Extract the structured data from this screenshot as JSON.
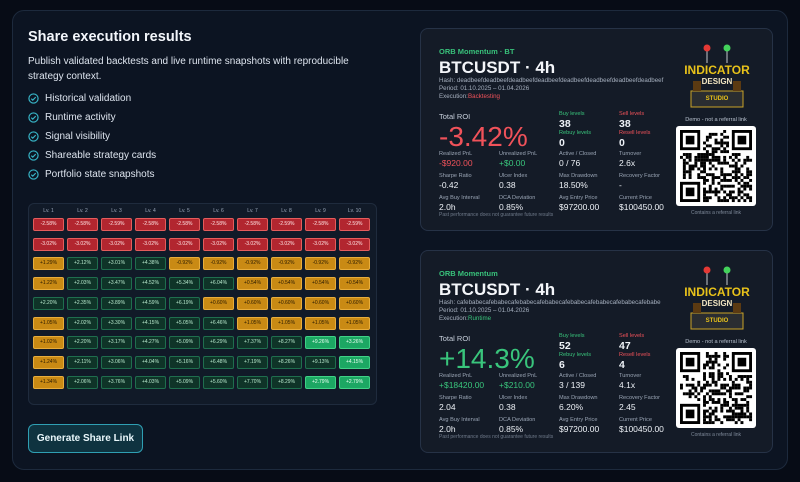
{
  "header": {
    "title": "Share execution results",
    "description": "Publish validated backtests and live runtime snapshots with reproducible strategy context."
  },
  "features": [
    "Historical validation",
    "Runtime activity",
    "Signal visibility",
    "Shareable strategy cards",
    "Portfolio state snapshots"
  ],
  "heatmap": {
    "columns": [
      "Lv. 1",
      "Lv. 2",
      "Lv. 3",
      "Lv. 4",
      "Lv. 5",
      "Lv. 6",
      "Lv. 7",
      "Lv. 8",
      "Lv. 9",
      "Lv. 10"
    ],
    "rows": [
      [
        "-2.58%",
        "-2.58%",
        "-2.59%",
        "-2.58%",
        "-2.58%",
        "-2.58%",
        "-2.58%",
        "-2.59%",
        "-2.58%",
        "-2.59%"
      ],
      [
        "-3.02%",
        "-3.02%",
        "-3.02%",
        "-3.02%",
        "-3.02%",
        "-3.02%",
        "-3.02%",
        "-3.02%",
        "-3.02%",
        "-3.02%"
      ],
      [
        "+1.29%",
        "+2.12%",
        "+3.01%",
        "+4.38%",
        "-0.92%",
        "-0.92%",
        "-0.92%",
        "-0.92%",
        "-0.92%",
        "-0.92%"
      ],
      [
        "+1.22%",
        "+2.03%",
        "+3.47%",
        "+4.52%",
        "+5.34%",
        "+6.04%",
        "+0.54%",
        "+0.54%",
        "+0.54%",
        "+0.54%"
      ],
      [
        "+2.20%",
        "+2.35%",
        "+3.89%",
        "+4.59%",
        "+6.19%",
        "+0.60%",
        "+0.60%",
        "+0.60%",
        "+0.60%",
        "+0.60%"
      ],
      [
        "+1.05%",
        "+2.02%",
        "+3.30%",
        "+4.15%",
        "+5.05%",
        "+6.46%",
        "+1.05%",
        "+1.05%",
        "+1.05%",
        "+1.05%"
      ],
      [
        "+1.02%",
        "+2.20%",
        "+3.17%",
        "+4.27%",
        "+5.09%",
        "+6.29%",
        "+7.37%",
        "+8.27%",
        "+9.26%",
        "+3.26%"
      ],
      [
        "+1.24%",
        "+2.11%",
        "+3.06%",
        "+4.04%",
        "+5.16%",
        "+6.48%",
        "+7.19%",
        "+8.26%",
        "+9.13%",
        "+4.15%"
      ],
      [
        "+1.34%",
        "+2.06%",
        "+3.76%",
        "+4.03%",
        "+5.09%",
        "+5.60%",
        "+7.70%",
        "+8.29%",
        "+2.79%",
        "+2.79%"
      ]
    ],
    "tones": [
      [
        "loss",
        "loss",
        "loss",
        "loss",
        "loss",
        "loss",
        "loss",
        "loss",
        "loss",
        "loss"
      ],
      [
        "loss",
        "loss",
        "loss",
        "loss",
        "loss",
        "loss",
        "loss",
        "loss",
        "loss",
        "loss"
      ],
      [
        "warn",
        "gain",
        "gain",
        "gain",
        "warn",
        "warn",
        "warn",
        "warn",
        "warn",
        "warn"
      ],
      [
        "warn",
        "gain",
        "gain",
        "gain",
        "gain",
        "gain",
        "warn",
        "warn",
        "warn",
        "warn"
      ],
      [
        "gain",
        "gain",
        "gain",
        "gain",
        "gain",
        "warn",
        "warn",
        "warn",
        "warn",
        "warn"
      ],
      [
        "warn",
        "gain",
        "gain",
        "gain",
        "gain",
        "gain",
        "warn",
        "warn",
        "warn",
        "warn"
      ],
      [
        "warn",
        "gain",
        "gain",
        "gain",
        "gain",
        "gain",
        "gain",
        "gain",
        "best",
        "best"
      ],
      [
        "warn",
        "gain",
        "gain",
        "gain",
        "gain",
        "gain",
        "gain",
        "gain",
        "gain",
        "best"
      ],
      [
        "warn",
        "gain",
        "gain",
        "gain",
        "gain",
        "gain",
        "gain",
        "gain",
        "best",
        "best"
      ]
    ]
  },
  "button": {
    "label": "Generate Share Link"
  },
  "cards": [
    {
      "strategy": "ORB Momentum · BT",
      "title": "BTCUSDT · 4h",
      "hash": "Hash: deadbeefdeadbeefdeadbeefdeadbeefdeadbeefdeadbeefdeadbeefdeadbeef",
      "period": "Period: 01.10.2025 – 01.04.2026",
      "execution_label": "Execution:",
      "execution": "Backtesting",
      "execution_tone": "loss",
      "roi_label": "Total ROI",
      "roi": "-3.42%",
      "roi_tone": "loss",
      "metrics": [
        {
          "label": "Buy levels",
          "value": "38",
          "label_tone": "gain"
        },
        {
          "label": "Sell levels",
          "value": "38",
          "label_tone": "loss"
        },
        {
          "label": "Rebuy levels",
          "value": "0",
          "label_tone": "gain"
        },
        {
          "label": "Resell levels",
          "value": "0",
          "label_tone": "loss"
        },
        {
          "label": "Realized PnL",
          "value": "-$920.00",
          "value_tone": "loss"
        },
        {
          "label": "Unrealized PnL",
          "value": "+$0.00",
          "value_tone": "gain"
        },
        {
          "label": "Active / Closed",
          "value": "0 / 76"
        },
        {
          "label": "Turnover",
          "value": "2.6x"
        },
        {
          "label": "Sharpe Ratio",
          "value": "-0.42"
        },
        {
          "label": "Ulcer Index",
          "value": "0.38"
        },
        {
          "label": "Max Drawdown",
          "value": "18.50%"
        },
        {
          "label": "Recovery Factor",
          "value": "-"
        },
        {
          "label": "Avg Buy Interval",
          "value": "2.0h"
        },
        {
          "label": "DCA Deviation",
          "value": "0.85%"
        },
        {
          "label": "Avg Entry Price",
          "value": "$97200.00"
        },
        {
          "label": "Current Price",
          "value": "$100450.00"
        }
      ],
      "disclaimer": "Past performance does not guarantee future results",
      "logo": [
        "INDICATOR",
        "DESIGN",
        "STUDIO"
      ],
      "demo_note": "Demo - not a referral link",
      "qr_note": "Contains a referral link"
    },
    {
      "strategy": "ORB Momentum",
      "title": "BTCUSDT · 4h",
      "hash": "Hash: cafebabecafebabecafebabecafebabecafebabecafebabecafebabecafebabe",
      "period": "Period: 01.10.2025 – 01.04.2026",
      "execution_label": "Execution:",
      "execution": "Runtime",
      "execution_tone": "gain",
      "roi_label": "Total ROI",
      "roi": "+14.3%",
      "roi_tone": "gain",
      "metrics": [
        {
          "label": "Buy levels",
          "value": "52",
          "label_tone": "gain"
        },
        {
          "label": "Sell levels",
          "value": "47",
          "label_tone": "loss"
        },
        {
          "label": "Rebuy levels",
          "value": "6",
          "label_tone": "gain"
        },
        {
          "label": "Resell levels",
          "value": "4",
          "label_tone": "loss"
        },
        {
          "label": "Realized PnL",
          "value": "+$18420.00",
          "value_tone": "gain"
        },
        {
          "label": "Unrealized PnL",
          "value": "+$210.00",
          "value_tone": "gain"
        },
        {
          "label": "Active / Closed",
          "value": "3 / 139"
        },
        {
          "label": "Turnover",
          "value": "4.1x"
        },
        {
          "label": "Sharpe Ratio",
          "value": "2.04"
        },
        {
          "label": "Ulcer Index",
          "value": "0.38"
        },
        {
          "label": "Max Drawdown",
          "value": "6.20%"
        },
        {
          "label": "Recovery Factor",
          "value": "2.45"
        },
        {
          "label": "Avg Buy Interval",
          "value": "2.0h"
        },
        {
          "label": "DCA Deviation",
          "value": "0.85%"
        },
        {
          "label": "Avg Entry Price",
          "value": "$97200.00"
        },
        {
          "label": "Current Price",
          "value": "$100450.00"
        }
      ],
      "disclaimer": "Past performance does not guarantee future results",
      "logo": [
        "INDICATOR",
        "DESIGN",
        "STUDIO"
      ],
      "demo_note": "Demo - not a referral link",
      "qr_note": "Contains a referral link"
    }
  ]
}
